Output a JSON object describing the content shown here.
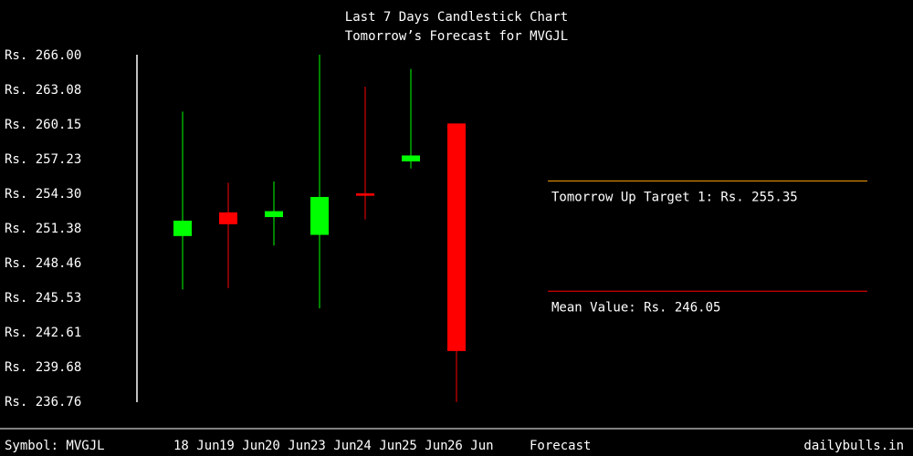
{
  "chart_data": {
    "type": "candlestick",
    "title": "Last 7 Days Candlestick Chart",
    "subtitle": "Tomorrow’s Forecast for MVGJL",
    "y_tick_labels": [
      "Rs. 266.00",
      "Rs. 263.08",
      "Rs. 260.15",
      "Rs. 257.23",
      "Rs. 254.30",
      "Rs. 251.38",
      "Rs. 248.46",
      "Rs. 245.53",
      "Rs. 242.61",
      "Rs. 239.68",
      "Rs. 236.76"
    ],
    "ylim": [
      236.76,
      266.0
    ],
    "categories": [
      "18 Jun",
      "19 Jun",
      "20 Jun",
      "23 Jun",
      "24 Jun",
      "25 Jun",
      "26 Jun"
    ],
    "forecast_label": "Forecast",
    "candles": [
      {
        "date": "18 Jun",
        "open": 250.7,
        "high": 261.2,
        "low": 246.2,
        "close": 252.0
      },
      {
        "date": "19 Jun",
        "open": 252.7,
        "high": 255.2,
        "low": 246.3,
        "close": 251.7
      },
      {
        "date": "20 Jun",
        "open": 252.3,
        "high": 255.3,
        "low": 249.9,
        "close": 252.8
      },
      {
        "date": "23 Jun",
        "open": 250.8,
        "high": 266.0,
        "low": 244.6,
        "close": 254.0
      },
      {
        "date": "24 Jun",
        "open": 254.3,
        "high": 263.3,
        "low": 252.1,
        "close": 254.1
      },
      {
        "date": "25 Jun",
        "open": 257.0,
        "high": 264.8,
        "low": 256.4,
        "close": 257.5
      },
      {
        "date": "26 Jun",
        "open": 260.2,
        "high": 260.2,
        "low": 236.7,
        "close": 241.0
      }
    ],
    "forecast_lines": [
      {
        "label": "Tomorrow Up Target 1: Rs. 255.35",
        "value": 255.35,
        "color": "#ffa500"
      },
      {
        "label": "Mean Value: Rs. 246.05",
        "value": 246.05,
        "color": "#ff0000"
      }
    ],
    "colors": {
      "up": "#00ff00",
      "down": "#ff0000",
      "background": "#000000",
      "text": "#ffffff"
    }
  },
  "footer": {
    "symbol": "Symbol: MVGJL",
    "brand": "dailybulls.in"
  }
}
